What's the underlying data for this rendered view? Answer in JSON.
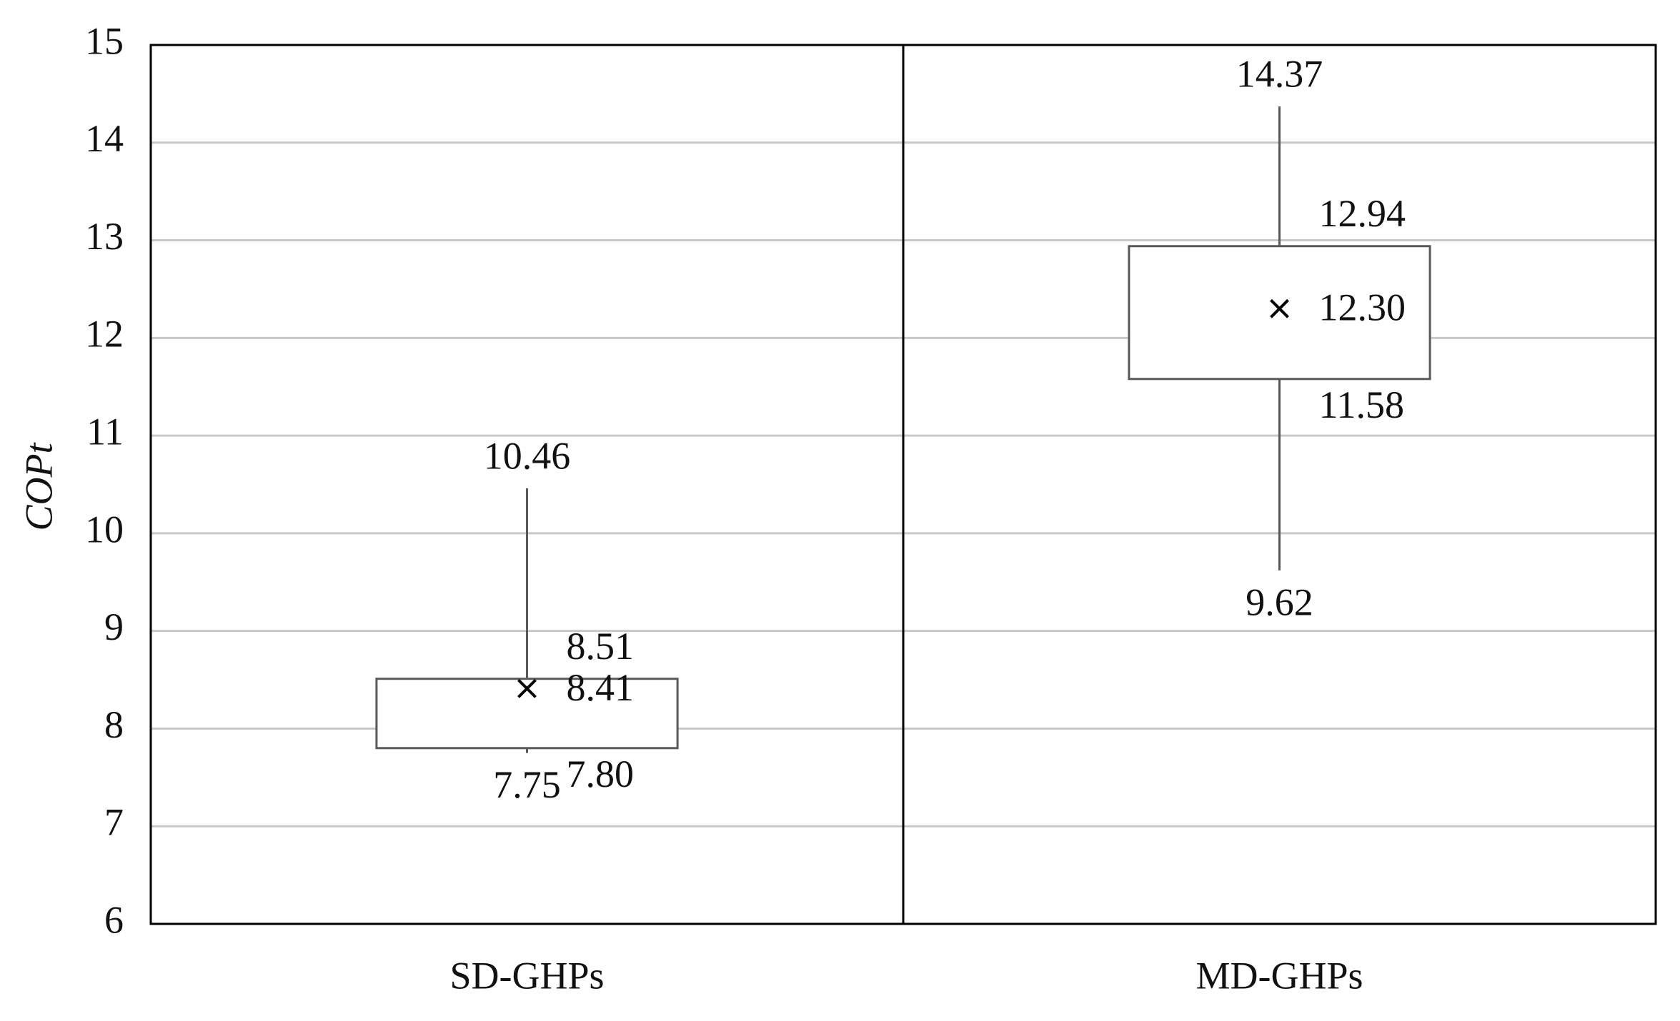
{
  "chart_data": {
    "type": "box",
    "y_label": "COPt",
    "categories": [
      "SD-GHPs",
      "MD-GHPs"
    ],
    "min": [
      7.75,
      9.62
    ],
    "q1": [
      7.8,
      11.58
    ],
    "q3": [
      8.51,
      12.94
    ],
    "max": [
      10.46,
      14.37
    ],
    "mean": [
      8.41,
      12.3
    ],
    "value_labels": {
      "min": [
        "7.75",
        "9.62"
      ],
      "q1": [
        "7.80",
        "11.58"
      ],
      "q3": [
        "8.51",
        "12.94"
      ],
      "max": [
        "10.46",
        "14.37"
      ],
      "mean": [
        "8.41",
        "12.30"
      ]
    },
    "ylim": [
      6,
      15
    ],
    "yticks": [
      6,
      7,
      8,
      9,
      10,
      11,
      12,
      13,
      14,
      15
    ],
    "grid": true,
    "color": "#595959"
  }
}
